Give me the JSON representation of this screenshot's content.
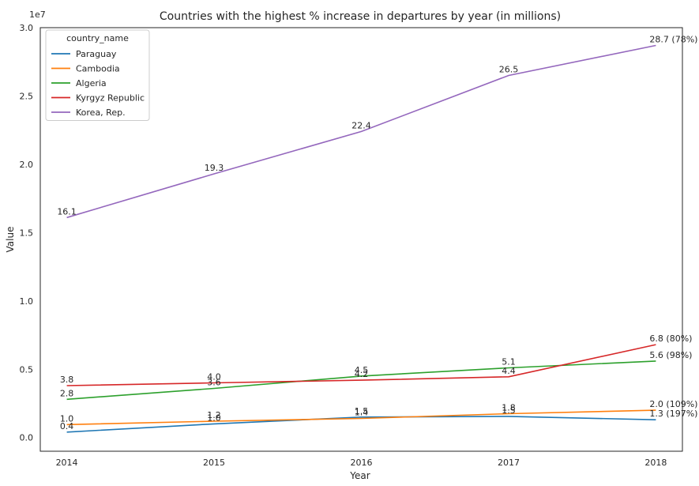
{
  "chart_data": {
    "type": "line",
    "title": "Countries with the highest % increase in departures by year (in millions)",
    "xlabel": "Year",
    "ylabel": "Value",
    "y_offset_label": "1e7",
    "x": [
      2014,
      2015,
      2016,
      2017,
      2018
    ],
    "x_tick_labels": [
      "2014",
      "2015",
      "2016",
      "2017",
      "2018"
    ],
    "ylim": [
      -0.1,
      3.0
    ],
    "y_ticks": [
      0.0,
      0.5,
      1.0,
      1.5,
      2.0,
      2.5,
      3.0
    ],
    "y_tick_labels": [
      "0.0",
      "0.5",
      "1.0",
      "1.5",
      "2.0",
      "2.5",
      "3.0"
    ],
    "grid": false,
    "legend": {
      "title": "country_name",
      "placement": "top-left"
    },
    "series": [
      {
        "name": "Paraguay",
        "color": "#1f77b4",
        "values": [
          0.04,
          0.1,
          0.15,
          0.155,
          0.13
        ],
        "labels": [
          "0.4",
          "1.0",
          "1.5",
          "1.5",
          "1.3 (197%)"
        ]
      },
      {
        "name": "Cambodia",
        "color": "#ff7f0e",
        "values": [
          0.095,
          0.12,
          0.14,
          0.175,
          0.2
        ],
        "labels": [
          "1.0",
          "1.2",
          "1.4",
          "1.8",
          "2.0 (109%)"
        ]
      },
      {
        "name": "Algeria",
        "color": "#2ca02c",
        "values": [
          0.28,
          0.36,
          0.45,
          0.51,
          0.56
        ],
        "labels": [
          "2.8",
          "3.6",
          "4.5",
          "5.1",
          "5.6  (98%)"
        ]
      },
      {
        "name": "Kyrgyz Republic",
        "color": "#d62728",
        "values": [
          0.38,
          0.4,
          0.42,
          0.445,
          0.68
        ],
        "labels": [
          "3.8",
          "4.0",
          "4.2",
          "4.4",
          "6.8  (80%)"
        ]
      },
      {
        "name": "Korea, Rep.",
        "color": "#9467bd",
        "values": [
          1.61,
          1.93,
          2.24,
          2.65,
          2.87
        ],
        "labels": [
          "16.1",
          "19.3",
          "22.4",
          "26.5",
          "28.7  (78%)"
        ]
      }
    ]
  }
}
